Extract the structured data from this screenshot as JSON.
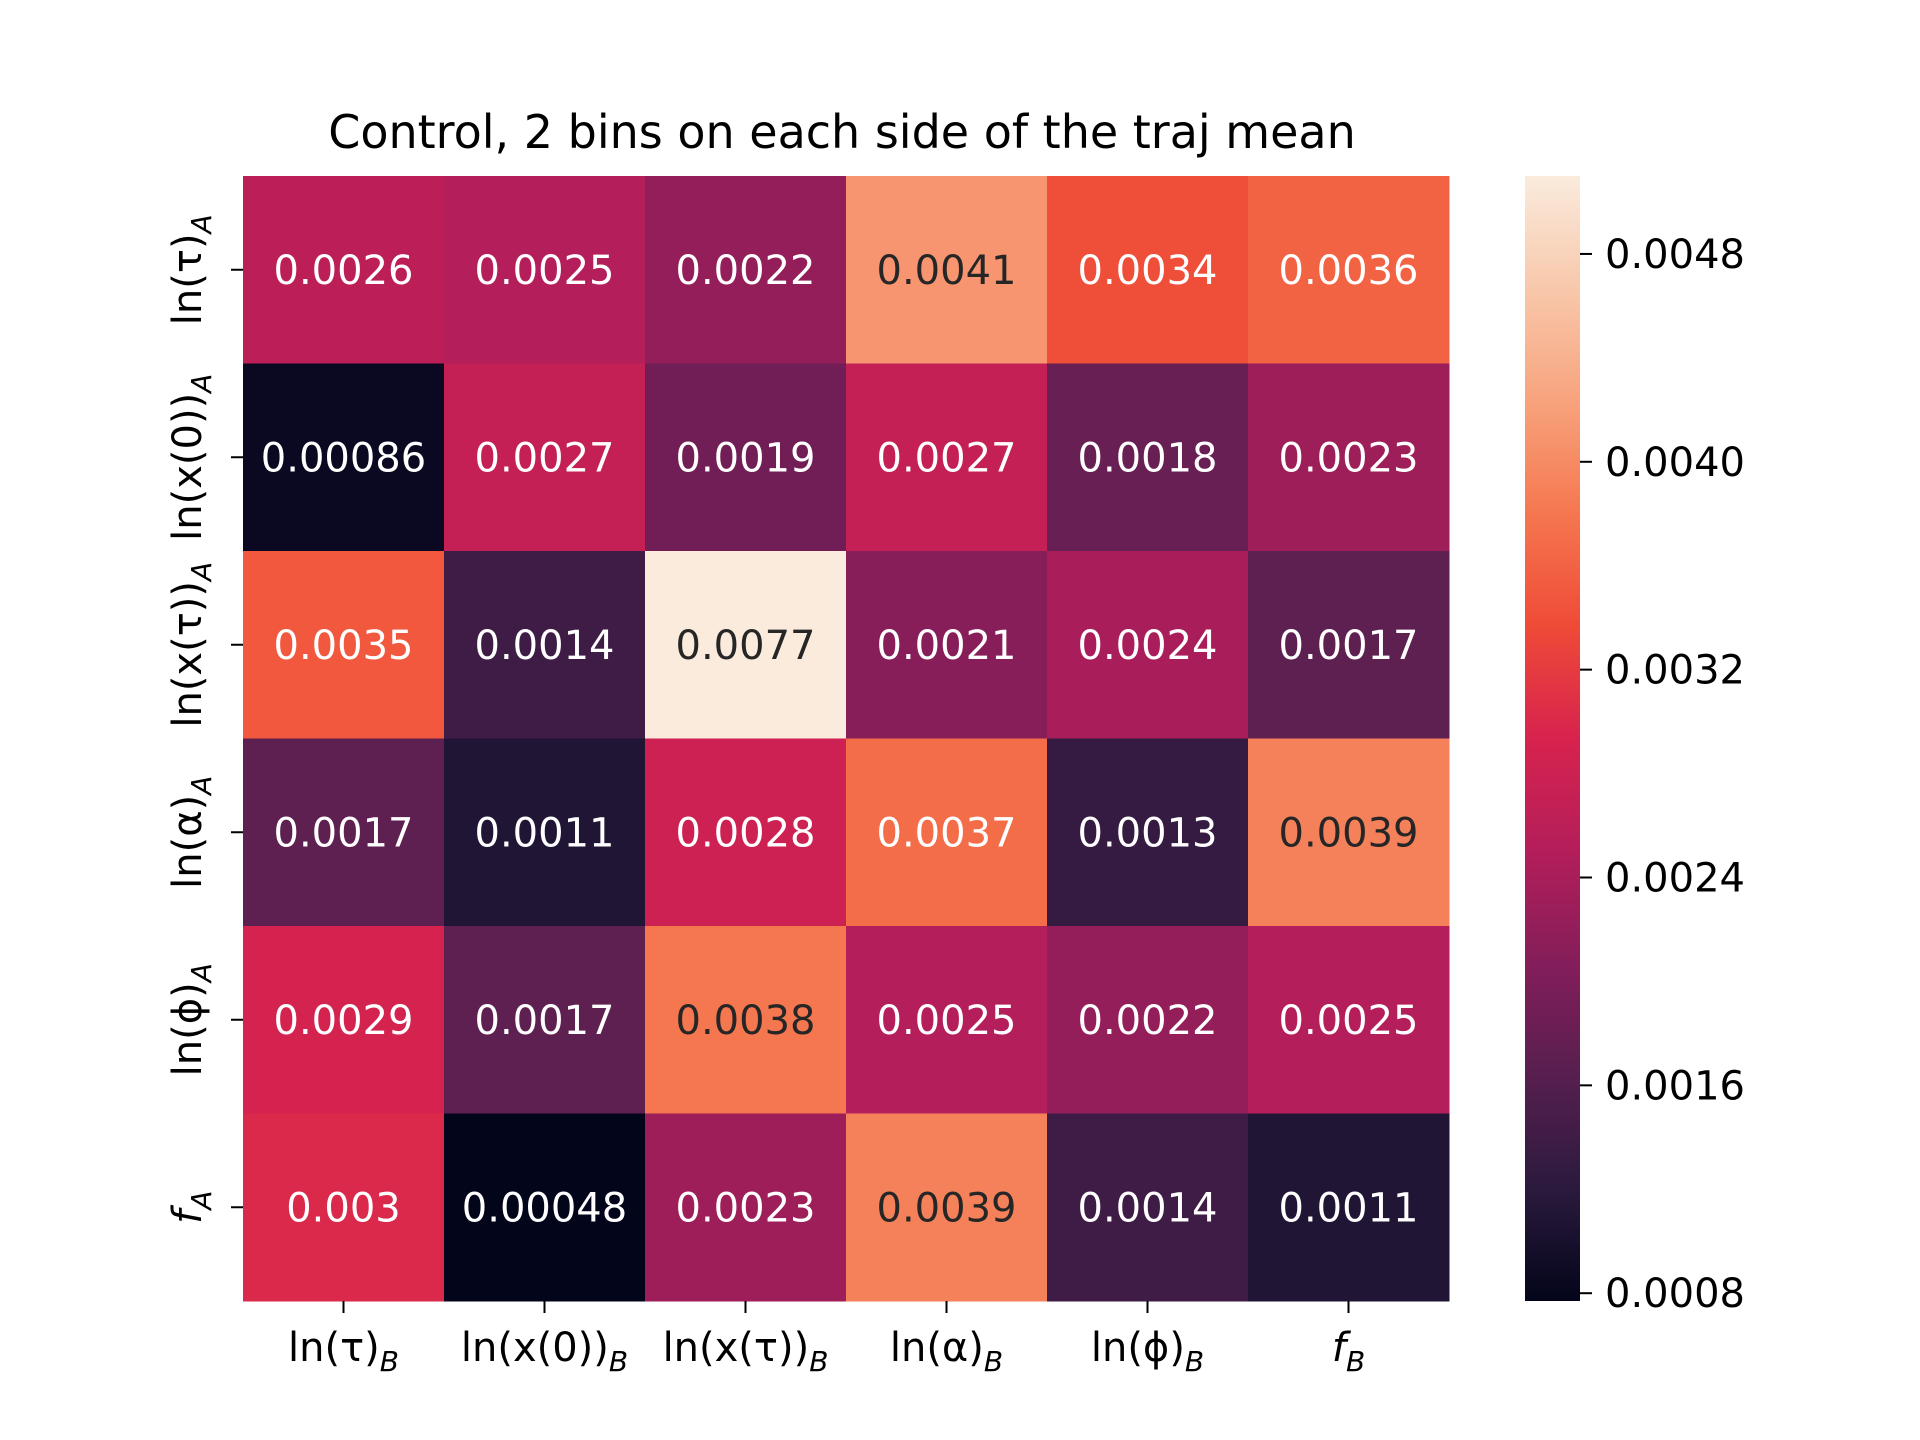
{
  "chart_data": {
    "type": "heatmap",
    "title": "Control, 2 bins on each side of the traj mean",
    "x_labels": [
      {
        "base": "ln(τ)",
        "sub": "B"
      },
      {
        "base": "ln(x(0))",
        "sub": "B"
      },
      {
        "base": "ln(x(τ))",
        "sub": "B"
      },
      {
        "base": "ln(α)",
        "sub": "B"
      },
      {
        "base": "ln(ϕ)",
        "sub": "B"
      },
      {
        "base": "f",
        "sub": "B"
      }
    ],
    "y_labels": [
      {
        "base": "ln(τ)",
        "sub": "A"
      },
      {
        "base": "ln(x(0))",
        "sub": "A"
      },
      {
        "base": "ln(x(τ))",
        "sub": "A"
      },
      {
        "base": "ln(α)",
        "sub": "A"
      },
      {
        "base": "ln(ϕ)",
        "sub": "A"
      },
      {
        "base": "f",
        "sub": "A"
      }
    ],
    "values": [
      [
        0.0026,
        0.0025,
        0.0022,
        0.0041,
        0.0034,
        0.0036
      ],
      [
        0.00086,
        0.0027,
        0.0019,
        0.0027,
        0.0018,
        0.0023
      ],
      [
        0.0035,
        0.0014,
        0.0077,
        0.0021,
        0.0024,
        0.0017
      ],
      [
        0.0017,
        0.0011,
        0.0028,
        0.0037,
        0.0013,
        0.0039
      ],
      [
        0.0029,
        0.0017,
        0.0038,
        0.0025,
        0.0022,
        0.0025
      ],
      [
        0.003,
        0.00048,
        0.0023,
        0.0039,
        0.0014,
        0.0011
      ]
    ],
    "value_labels": [
      [
        "0.0026",
        "0.0025",
        "0.0022",
        "0.0041",
        "0.0034",
        "0.0036"
      ],
      [
        "0.00086",
        "0.0027",
        "0.0019",
        "0.0027",
        "0.0018",
        "0.0023"
      ],
      [
        "0.0035",
        "0.0014",
        "0.0077",
        "0.0021",
        "0.0024",
        "0.0017"
      ],
      [
        "0.0017",
        "0.0011",
        "0.0028",
        "0.0037",
        "0.0013",
        "0.0039"
      ],
      [
        "0.0029",
        "0.0017",
        "0.0038",
        "0.0025",
        "0.0022",
        "0.0025"
      ],
      [
        "0.003",
        "0.00048",
        "0.0023",
        "0.0039",
        "0.0014",
        "0.0011"
      ]
    ],
    "colorbar": {
      "range": [
        0.00077,
        0.0051
      ],
      "ticks": [
        0.0008,
        0.0016,
        0.0024,
        0.0032,
        0.004,
        0.0048
      ],
      "tick_labels": [
        "0.0008",
        "0.0016",
        "0.0024",
        "0.0032",
        "0.0040",
        "0.0048"
      ],
      "colormap": "rocket",
      "colormap_stops": [
        "#03051a",
        "#2b1a3d",
        "#571f4f",
        "#841e5a",
        "#b41e5a",
        "#d7234e",
        "#ef4b37",
        "#f5774f",
        "#f7a37d",
        "#f8c8ab",
        "#faebdd"
      ]
    },
    "grid": false,
    "legend": "colorbar-right"
  }
}
